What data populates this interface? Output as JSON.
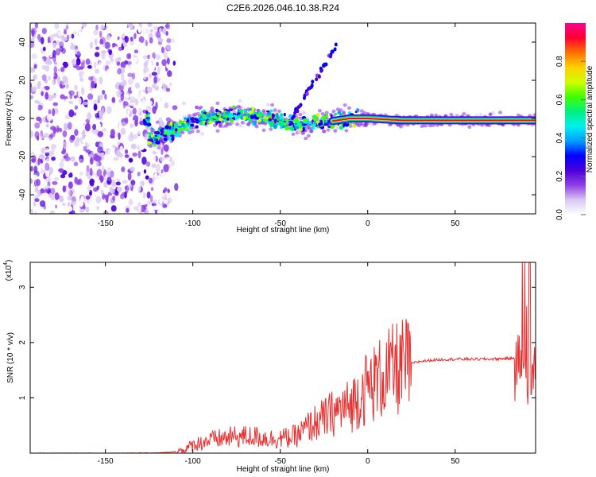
{
  "title": "C2E6.2026.046.10.38.R24",
  "chart_data": [
    {
      "type": "heatmap",
      "name": "spectrogram",
      "xlabel": "Height of straight line (km)",
      "ylabel": "Frequency (Hz)",
      "xlim": [
        -193,
        96
      ],
      "ylim": [
        -50,
        50
      ],
      "xticks": [
        -150,
        -100,
        -50,
        0,
        50
      ],
      "yticks": [
        -40,
        -20,
        0,
        20,
        40
      ],
      "colorbar": {
        "label": "Normalized spectral amplitude",
        "range": [
          0,
          1
        ],
        "ticks": [
          "0.0",
          "0.2",
          "0.4",
          "0.6",
          "0.8"
        ],
        "colors": [
          "#ffffff",
          "#d9c8f2",
          "#8f3fe6",
          "#4b00d9",
          "#0000ff",
          "#00a0ff",
          "#00f0f0",
          "#00f080",
          "#40ff00",
          "#d0ff00",
          "#ffd000",
          "#ff7000",
          "#ff0030",
          "#ff0090"
        ]
      },
      "features": {
        "noise_region_km": [
          -193,
          -113
        ],
        "signal_center_hz": [
          {
            "x": -125,
            "y": -11
          },
          {
            "x": -110,
            "y": -6
          },
          {
            "x": -95,
            "y": 0
          },
          {
            "x": -75,
            "y": 2
          },
          {
            "x": -55,
            "y": 0
          },
          {
            "x": -40,
            "y": -3
          },
          {
            "x": -25,
            "y": -2
          },
          {
            "x": -10,
            "y": 0
          },
          {
            "x": 0,
            "y": 0
          },
          {
            "x": 20,
            "y": -1
          },
          {
            "x": 50,
            "y": -1
          },
          {
            "x": 96,
            "y": -1
          }
        ],
        "diagonal_streak": {
          "x": [
            -45,
            -18
          ],
          "y": [
            -2,
            38
          ]
        }
      }
    },
    {
      "type": "line",
      "name": "snr",
      "xlabel": "Height of straight line (km)",
      "ylabel": "SNR (10 * v/v)",
      "multiplier": "(x10",
      "multiplier_exp": "4",
      "xlim": [
        -193,
        96
      ],
      "ylim": [
        0,
        3.45
      ],
      "xticks": [
        -150,
        -100,
        -50,
        0,
        50
      ],
      "yticks": [
        1,
        2,
        3
      ],
      "color": "#e83030",
      "series": [
        {
          "name": "SNR",
          "x": [
            -193,
            -150,
            -120,
            -112,
            -105,
            -100,
            -92,
            -85,
            -75,
            -65,
            -55,
            -45,
            -40,
            -35,
            -30,
            -25,
            -20,
            -15,
            -10,
            -5,
            0,
            5,
            10,
            15,
            20,
            25,
            30,
            40,
            50,
            60,
            70,
            80,
            85,
            88,
            90,
            92,
            94,
            96
          ],
          "y": [
            0.0,
            0.0,
            0.005,
            0.02,
            0.06,
            0.15,
            0.22,
            0.26,
            0.3,
            0.3,
            0.26,
            0.28,
            0.32,
            0.45,
            0.55,
            0.62,
            0.72,
            0.8,
            0.85,
            1.05,
            1.2,
            1.3,
            1.4,
            1.5,
            1.56,
            1.62,
            1.66,
            1.69,
            1.7,
            1.7,
            1.7,
            1.71,
            1.72,
            1.66,
            1.5,
            1.3,
            1.55,
            1.72
          ]
        }
      ]
    }
  ]
}
